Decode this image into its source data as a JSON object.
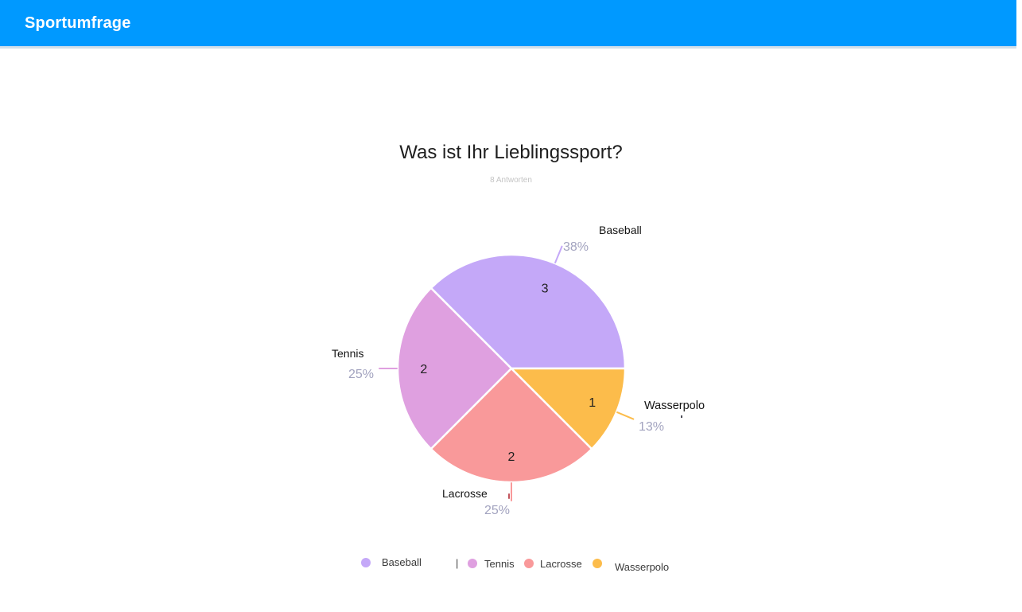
{
  "header": {
    "title": "Sportumfrage"
  },
  "theme": {
    "header_bg": "#0099ff",
    "header_text": "#ffffff",
    "page_bg": "#ffffff",
    "pct_label_color": "#a2a3bf",
    "name_label_color": "#141414",
    "value_label_color": "#1f1f1f"
  },
  "chart_data": {
    "type": "pie",
    "title": "Was ist Ihr Lieblingssport?",
    "subtitle": "8 Antworten",
    "total_responses": 8,
    "start_angle_deg": 0,
    "direction": "counterclockwise",
    "slices": [
      {
        "label": "Baseball",
        "value": 3,
        "pct_label": "38%",
        "color": "#c4a8f8"
      },
      {
        "label": "Tennis",
        "value": 2,
        "pct_label": "25%",
        "color": "#dfa0e0"
      },
      {
        "label": "Lacrosse",
        "value": 2,
        "pct_label": "25%",
        "color": "#f9999a"
      },
      {
        "label": "Wasserpolo",
        "value": 1,
        "pct_label": "13%",
        "color": "#fcbc4b"
      }
    ],
    "legend": {
      "position": "bottom",
      "cursor": "|",
      "items": [
        "Baseball",
        "Tennis",
        "Lacrosse",
        "Wasserpolo"
      ]
    }
  }
}
